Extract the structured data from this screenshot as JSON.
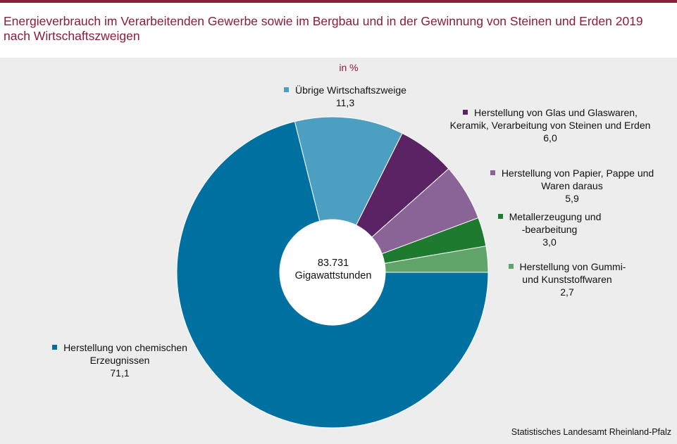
{
  "title": "Energieverbrauch im Verarbeitenden Gewerbe sowie im Bergbau und in der Gewinnung von Steinen und Erden 2019 nach Wirtschaftszweigen",
  "unit": "in %",
  "center": {
    "value": "83.731",
    "unit": "Gigawattstunden"
  },
  "source": "Statistisches Landesamt Rheinland-Pfalz",
  "colors": {
    "accent": "#8b1c3a",
    "background": "#ededed"
  },
  "chart_data": {
    "type": "pie",
    "donut": true,
    "title": "Energieverbrauch im Verarbeitenden Gewerbe sowie im Bergbau und in der Gewinnung von Steinen und Erden 2019 nach Wirtschaftszweigen",
    "unit": "in %",
    "slices": [
      {
        "label_lines": [
          "Herstellung von chemischen",
          "Erzeugnissen"
        ],
        "value": 71.1,
        "value_text": "71,1",
        "color": "#0070a0"
      },
      {
        "label_lines": [
          "Übrige Wirtschaftszweige"
        ],
        "value": 11.3,
        "value_text": "11,3",
        "color": "#4d9fc2"
      },
      {
        "label_lines": [
          "Herstellung von Glas und Glaswaren,",
          "Keramik, Verarbeitung von Steinen und Erden"
        ],
        "value": 6.0,
        "value_text": "6,0",
        "color": "#5a2364"
      },
      {
        "label_lines": [
          "Herstellung von Papier, Pappe und",
          "Waren daraus"
        ],
        "value": 5.9,
        "value_text": "5,9",
        "color": "#8a6496"
      },
      {
        "label_lines": [
          "Metallerzeugung  und",
          "-bearbeitung"
        ],
        "value": 3.0,
        "value_text": "3,0",
        "color": "#1e7a2e"
      },
      {
        "label_lines": [
          "Herstellung von Gummi-",
          "und Kunststoffwaren"
        ],
        "value": 2.7,
        "value_text": "2,7",
        "color": "#60a46a"
      }
    ]
  }
}
